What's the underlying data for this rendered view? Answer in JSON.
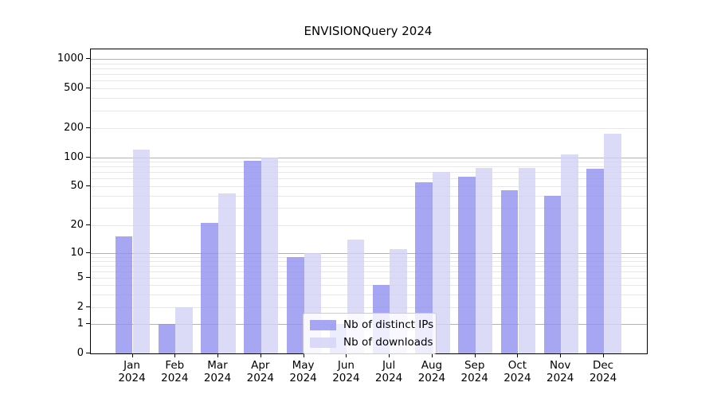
{
  "title": "ENVISIONQuery 2024",
  "year_label": "2024",
  "months": [
    "Jan",
    "Feb",
    "Mar",
    "Apr",
    "May",
    "Jun",
    "Jul",
    "Aug",
    "Sep",
    "Oct",
    "Nov",
    "Dec"
  ],
  "legend": {
    "items": [
      {
        "label": "Nb of distinct IPs",
        "series": "ips"
      },
      {
        "label": "Nb of downloads",
        "series": "downloads"
      }
    ]
  },
  "colors": {
    "ips": "#9090f0",
    "downloads": "#d2d2f6",
    "bar_opacity": 0.8,
    "major_grid": "#b3b3b3",
    "minor_grid": "#e7e7e7",
    "spine": "#000000"
  },
  "chart_data": {
    "type": "bar",
    "title": "ENVISIONQuery 2024",
    "categories": [
      "Jan 2024",
      "Feb 2024",
      "Mar 2024",
      "Apr 2024",
      "May 2024",
      "Jun 2024",
      "Jul 2024",
      "Aug 2024",
      "Sep 2024",
      "Oct 2024",
      "Nov 2024",
      "Dec 2024"
    ],
    "series": [
      {
        "name": "Nb of distinct IPs",
        "values": [
          15,
          1,
          21,
          92,
          9,
          1,
          4,
          55,
          63,
          45,
          40,
          76
        ]
      },
      {
        "name": "Nb of downloads",
        "values": [
          120,
          2,
          42,
          100,
          10,
          14,
          11,
          70,
          78,
          78,
          107,
          175
        ]
      }
    ],
    "yscale": "log-like",
    "yticks": [
      0,
      1,
      2,
      5,
      10,
      20,
      50,
      100,
      200,
      500,
      1000
    ],
    "minor_gridlines": [
      3,
      4,
      6,
      7,
      8,
      9,
      30,
      40,
      60,
      70,
      80,
      90,
      300,
      400,
      600,
      700,
      800,
      900
    ],
    "ylim": [
      0,
      1000
    ],
    "grid": true,
    "legend_position": "lower center",
    "xlabel": "",
    "ylabel": ""
  }
}
